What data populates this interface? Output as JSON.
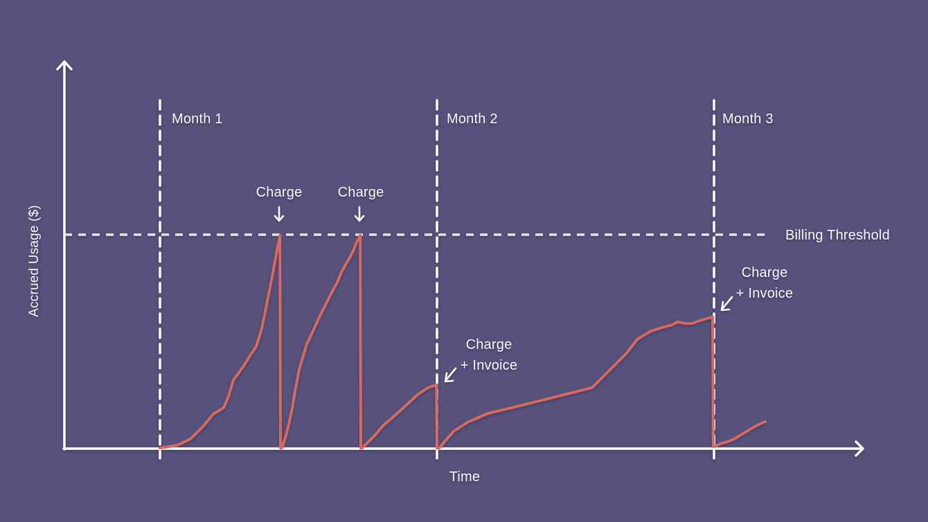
{
  "colors": {
    "background": "#56527C",
    "axis": "#FFFFFF",
    "month_dash": "#FFFFFF",
    "threshold_dash": "#EDE4E1",
    "usage_line": "#D7695E",
    "text": "#FAF8F7"
  },
  "axes": {
    "y_label": "Accrued Usage ($)",
    "x_label": "Time"
  },
  "chart_data": {
    "type": "line",
    "title": "",
    "xlabel": "Time",
    "ylabel": "Accrued Usage ($)",
    "x_unit": "months",
    "y_unit": "fraction of billing threshold",
    "grid": false,
    "xlim": [
      0,
      2.55
    ],
    "ylim": [
      0,
      1.45
    ],
    "threshold": {
      "label": "Billing Threshold",
      "value": 1.0
    },
    "month_labels": [
      "Month 1",
      "Month 2",
      "Month 3"
    ],
    "month_boundaries": [
      0,
      1,
      2
    ],
    "annotations": {
      "charge_1": "Charge",
      "charge_2": "Charge",
      "month2_event": {
        "line1": "Charge",
        "line2": "+ Invoice"
      },
      "month3_event": {
        "line1": "Charge",
        "line2": "+ Invoice"
      }
    },
    "events": [
      {
        "t": 0.43,
        "value": 1.0,
        "label": "Charge"
      },
      {
        "t": 0.72,
        "value": 1.0,
        "label": "Charge"
      },
      {
        "t": 1.0,
        "value": 0.3,
        "label": "Charge + Invoice"
      },
      {
        "t": 2.0,
        "value": 0.62,
        "label": "Charge + Invoice"
      }
    ],
    "series": [
      {
        "name": "Accrued Usage",
        "color": "#D7695E",
        "points": [
          [
            0.0,
            0.003
          ],
          [
            0.063,
            0.016
          ],
          [
            0.11,
            0.045
          ],
          [
            0.153,
            0.1
          ],
          [
            0.193,
            0.162
          ],
          [
            0.23,
            0.191
          ],
          [
            0.248,
            0.246
          ],
          [
            0.265,
            0.32
          ],
          [
            0.303,
            0.388
          ],
          [
            0.328,
            0.44
          ],
          [
            0.348,
            0.479
          ],
          [
            0.368,
            0.563
          ],
          [
            0.385,
            0.673
          ],
          [
            0.403,
            0.79
          ],
          [
            0.418,
            0.896
          ],
          [
            0.433,
            0.997
          ],
          [
            0.435,
            0.003
          ],
          [
            0.44,
            0.003
          ],
          [
            0.453,
            0.052
          ],
          [
            0.465,
            0.113
          ],
          [
            0.478,
            0.194
          ],
          [
            0.49,
            0.285
          ],
          [
            0.503,
            0.372
          ],
          [
            0.515,
            0.424
          ],
          [
            0.53,
            0.489
          ],
          [
            0.548,
            0.537
          ],
          [
            0.573,
            0.608
          ],
          [
            0.598,
            0.673
          ],
          [
            0.623,
            0.738
          ],
          [
            0.64,
            0.777
          ],
          [
            0.655,
            0.825
          ],
          [
            0.673,
            0.867
          ],
          [
            0.685,
            0.893
          ],
          [
            0.698,
            0.926
          ],
          [
            0.71,
            0.964
          ],
          [
            0.723,
            0.997
          ],
          [
            0.725,
            0.003
          ],
          [
            0.73,
            0.003
          ],
          [
            0.773,
            0.058
          ],
          [
            0.805,
            0.107
          ],
          [
            0.848,
            0.155
          ],
          [
            0.89,
            0.204
          ],
          [
            0.93,
            0.252
          ],
          [
            0.968,
            0.285
          ],
          [
            0.998,
            0.298
          ],
          [
            1.0,
            0.003
          ],
          [
            1.008,
            0.003
          ],
          [
            1.023,
            0.026
          ],
          [
            1.06,
            0.081
          ],
          [
            1.11,
            0.123
          ],
          [
            1.185,
            0.165
          ],
          [
            1.26,
            0.188
          ],
          [
            1.31,
            0.204
          ],
          [
            1.41,
            0.236
          ],
          [
            1.51,
            0.269
          ],
          [
            1.56,
            0.285
          ],
          [
            1.585,
            0.317
          ],
          [
            1.635,
            0.382
          ],
          [
            1.685,
            0.447
          ],
          [
            1.723,
            0.511
          ],
          [
            1.773,
            0.55
          ],
          [
            1.823,
            0.57
          ],
          [
            1.848,
            0.578
          ],
          [
            1.868,
            0.592
          ],
          [
            1.895,
            0.585
          ],
          [
            1.92,
            0.585
          ],
          [
            1.95,
            0.599
          ],
          [
            1.98,
            0.61
          ],
          [
            1.995,
            0.615
          ],
          [
            1.997,
            0.01
          ],
          [
            2.003,
            0.01
          ],
          [
            2.023,
            0.023
          ],
          [
            2.048,
            0.032
          ],
          [
            2.073,
            0.045
          ],
          [
            2.098,
            0.065
          ],
          [
            2.123,
            0.084
          ],
          [
            2.148,
            0.104
          ],
          [
            2.173,
            0.12
          ],
          [
            2.185,
            0.126
          ]
        ]
      }
    ]
  }
}
